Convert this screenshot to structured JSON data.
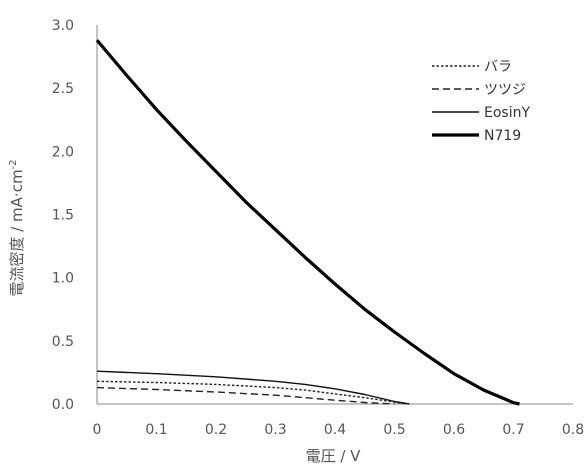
{
  "chart_data": {
    "type": "line",
    "xlabel": "電圧 / V",
    "ylabel": "電流密度 / mA·cm",
    "ylabel_sup": "-2",
    "xlim": [
      0,
      0.8
    ],
    "ylim": [
      0,
      3.0
    ],
    "x_ticks": [
      "0",
      "0.1",
      "0.2",
      "0.3",
      "0.4",
      "0.5",
      "0.6",
      "0.7",
      "0.8"
    ],
    "y_ticks": [
      "0.0",
      "0.5",
      "1.0",
      "1.5",
      "2.0",
      "2.5",
      "3.0"
    ],
    "grid": false,
    "legend_position": "top-right",
    "series": [
      {
        "name": "バラ",
        "style": "dotted",
        "color": "#222222",
        "x": [
          0,
          0.1,
          0.2,
          0.3,
          0.35,
          0.4,
          0.45,
          0.5,
          0.52
        ],
        "y": [
          0.18,
          0.17,
          0.155,
          0.13,
          0.11,
          0.08,
          0.05,
          0.015,
          0.0
        ]
      },
      {
        "name": "ツツジ",
        "style": "dashed",
        "color": "#222222",
        "x": [
          0,
          0.1,
          0.2,
          0.3,
          0.35,
          0.4,
          0.45,
          0.5
        ],
        "y": [
          0.13,
          0.115,
          0.095,
          0.07,
          0.05,
          0.03,
          0.012,
          0.0
        ]
      },
      {
        "name": "EosinY",
        "style": "solid",
        "color": "#111111",
        "x": [
          0,
          0.1,
          0.2,
          0.3,
          0.35,
          0.4,
          0.45,
          0.5,
          0.525
        ],
        "y": [
          0.26,
          0.24,
          0.215,
          0.18,
          0.155,
          0.12,
          0.075,
          0.02,
          0.0
        ]
      },
      {
        "name": "N719",
        "style": "bold",
        "color": "#000000",
        "x": [
          0,
          0.05,
          0.1,
          0.15,
          0.2,
          0.25,
          0.3,
          0.35,
          0.4,
          0.45,
          0.5,
          0.55,
          0.6,
          0.65,
          0.7,
          0.71
        ],
        "y": [
          2.88,
          2.6,
          2.33,
          2.08,
          1.84,
          1.6,
          1.38,
          1.16,
          0.95,
          0.75,
          0.57,
          0.4,
          0.24,
          0.11,
          0.01,
          0.0
        ]
      }
    ]
  }
}
